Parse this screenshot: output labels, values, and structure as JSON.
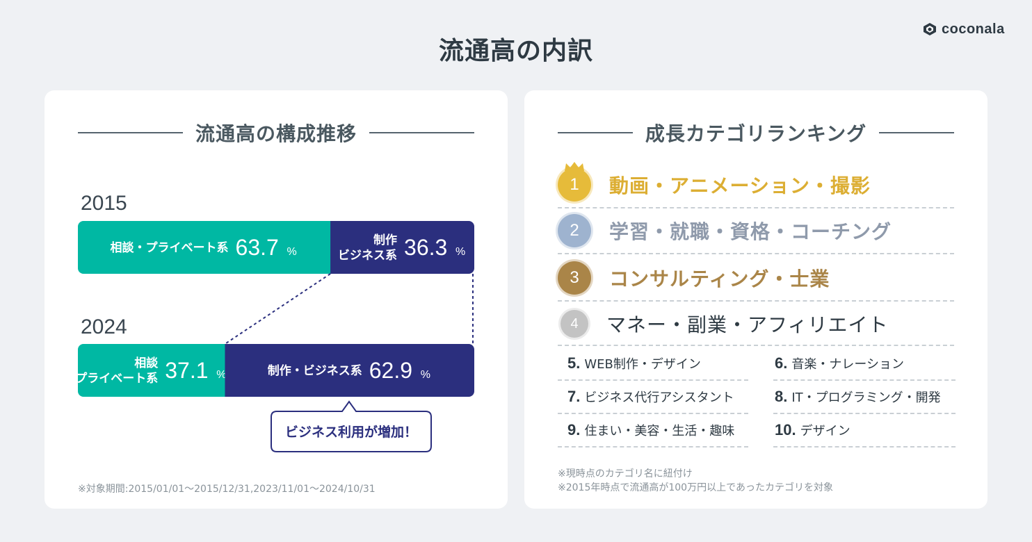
{
  "title": "流通高の内訳",
  "logo": "coconala",
  "left_section": {
    "heading": "流通高の構成推移",
    "footnote": "※対象期間:2015/01/01〜2015/12/31,2023/11/01〜2024/10/31",
    "callout": "ビジネス利用が増加！"
  },
  "chart_data": {
    "type": "bar",
    "orientation": "horizontal-stacked-100",
    "categories": [
      "2015",
      "2024"
    ],
    "unit": "%",
    "series": [
      {
        "name": "相談・プライベート系",
        "values": [
          63.7,
          37.1
        ],
        "color": "#00b8a3",
        "labels": [
          [
            "相談・プライベート系"
          ],
          [
            "相談",
            "プライベート系"
          ]
        ]
      },
      {
        "name": "制作・ビジネス系",
        "values": [
          36.3,
          62.9
        ],
        "color": "#2b2f7e",
        "labels": [
          [
            "制作",
            "ビジネス系"
          ],
          [
            "制作・ビジネス系"
          ]
        ]
      }
    ],
    "value_labels": [
      [
        "63.7",
        "36.3"
      ],
      [
        "37.1",
        "62.9"
      ]
    ]
  },
  "right_section": {
    "heading": "成長カテゴリランキング",
    "top_items": [
      {
        "rank": "1",
        "label": "動画・アニメーション・撮影",
        "medal_color": "#e6bb3a",
        "text_color": "#dcae33"
      },
      {
        "rank": "2",
        "label": "学習・就職・資格・コーチング",
        "medal_color": "#9eb3cf",
        "text_color": "#8f9aab"
      },
      {
        "rank": "3",
        "label": "コンサルティング・士業",
        "medal_color": "#aa8548",
        "text_color": "#aa8548"
      },
      {
        "rank": "4",
        "label": "マネー・副業・アフィリエイト",
        "medal_color": "#c3c3c3",
        "text_color": "#2e3a43"
      }
    ],
    "other_items": [
      {
        "rank": "5.",
        "label": "WEB制作・デザイン"
      },
      {
        "rank": "6.",
        "label": "音楽・ナレーション"
      },
      {
        "rank": "7.",
        "label": "ビジネス代行アシスタント"
      },
      {
        "rank": "8.",
        "label": "IT・プログラミング・開発"
      },
      {
        "rank": "9.",
        "label": "住まい・美容・生活・趣味"
      },
      {
        "rank": "10.",
        "label": "デザイン"
      }
    ],
    "footnote_1": "※現時点のカテゴリ名に紐付け",
    "footnote_2": "※2015年時点で流通高が100万円以上であったカテゴリを対象"
  }
}
